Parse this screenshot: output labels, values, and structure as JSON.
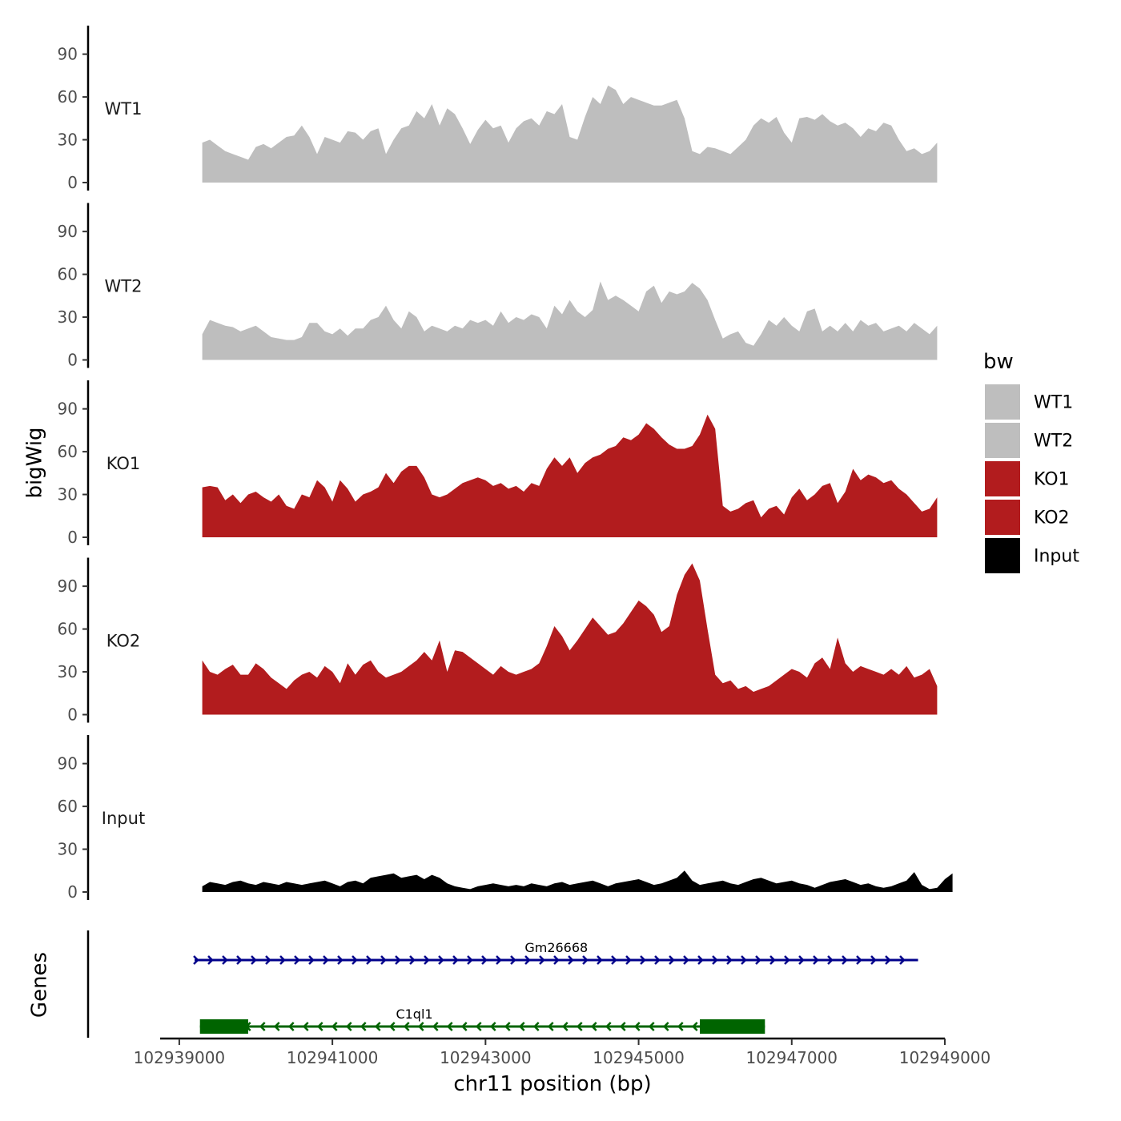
{
  "chart_data": {
    "type": "area",
    "x_axis": {
      "title": "chr11 position (bp)",
      "range": [
        102938750,
        102949000
      ],
      "ticks": [
        102939000,
        102941000,
        102943000,
        102945000,
        102947000,
        102949000
      ],
      "tick_labels": [
        "102939000",
        "102941000",
        "102943000",
        "102945000",
        "102947000",
        "102949000"
      ]
    },
    "y_axis": {
      "title": "bigWig",
      "range": [
        0,
        110
      ],
      "ticks": [
        0,
        30,
        60,
        90
      ],
      "tick_labels": [
        "0",
        "30",
        "60",
        "90"
      ]
    },
    "x_start": 102939300,
    "x_step": 100,
    "series": [
      {
        "name": "WT1",
        "color": "#bebebe",
        "values": [
          28,
          30,
          26,
          22,
          20,
          18,
          16,
          25,
          27,
          24,
          28,
          32,
          33,
          40,
          32,
          20,
          32,
          30,
          28,
          36,
          35,
          30,
          36,
          38,
          20,
          30,
          38,
          40,
          50,
          45,
          55,
          40,
          52,
          48,
          38,
          27,
          37,
          44,
          38,
          40,
          28,
          38,
          43,
          45,
          40,
          50,
          48,
          55,
          32,
          30,
          46,
          60,
          55,
          68,
          65,
          55,
          60,
          58,
          56,
          54,
          54,
          56,
          58,
          45,
          22,
          20,
          25,
          24,
          22,
          20,
          25,
          30,
          40,
          45,
          42,
          46,
          35,
          28,
          45,
          46,
          44,
          48,
          43,
          40,
          42,
          38,
          32,
          38,
          36,
          42,
          40,
          30,
          22,
          24,
          20,
          22,
          28
        ]
      },
      {
        "name": "WT2",
        "color": "#bebebe",
        "values": [
          18,
          28,
          26,
          24,
          23,
          20,
          22,
          24,
          20,
          16,
          15,
          14,
          14,
          16,
          26,
          26,
          20,
          18,
          22,
          17,
          22,
          22,
          28,
          30,
          38,
          28,
          22,
          34,
          30,
          20,
          24,
          22,
          20,
          24,
          22,
          28,
          26,
          28,
          24,
          34,
          26,
          30,
          28,
          32,
          30,
          22,
          38,
          32,
          42,
          34,
          30,
          35,
          55,
          42,
          45,
          42,
          38,
          34,
          48,
          52,
          40,
          48,
          46,
          48,
          54,
          50,
          42,
          28,
          15,
          18,
          20,
          12,
          10,
          18,
          28,
          24,
          30,
          24,
          20,
          34,
          36,
          20,
          24,
          20,
          26,
          20,
          28,
          24,
          26,
          20,
          22,
          24,
          20,
          26,
          22,
          18,
          24
        ]
      },
      {
        "name": "KO1",
        "color": "#b21c1e",
        "values": [
          35,
          36,
          35,
          26,
          30,
          24,
          30,
          32,
          28,
          25,
          30,
          22,
          20,
          30,
          28,
          40,
          35,
          25,
          40,
          34,
          25,
          30,
          32,
          35,
          45,
          38,
          46,
          50,
          50,
          42,
          30,
          28,
          30,
          34,
          38,
          40,
          42,
          40,
          36,
          38,
          34,
          36,
          32,
          38,
          36,
          48,
          56,
          50,
          56,
          45,
          52,
          56,
          58,
          62,
          64,
          70,
          68,
          72,
          80,
          76,
          70,
          65,
          62,
          62,
          64,
          72,
          86,
          76,
          22,
          18,
          20,
          24,
          26,
          14,
          20,
          22,
          16,
          28,
          34,
          26,
          30,
          36,
          38,
          24,
          32,
          48,
          40,
          44,
          42,
          38,
          40,
          34,
          30,
          24,
          18,
          20,
          28
        ]
      },
      {
        "name": "KO2",
        "color": "#b21c1e",
        "values": [
          38,
          30,
          28,
          32,
          35,
          28,
          28,
          36,
          32,
          26,
          22,
          18,
          24,
          28,
          30,
          26,
          34,
          30,
          22,
          36,
          28,
          35,
          38,
          30,
          26,
          28,
          30,
          34,
          38,
          44,
          38,
          52,
          30,
          45,
          44,
          40,
          36,
          32,
          28,
          34,
          30,
          28,
          30,
          32,
          36,
          48,
          62,
          55,
          45,
          52,
          60,
          68,
          62,
          56,
          58,
          64,
          72,
          80,
          76,
          70,
          58,
          62,
          84,
          98,
          106,
          94,
          60,
          28,
          22,
          24,
          18,
          20,
          16,
          18,
          20,
          24,
          28,
          32,
          30,
          26,
          36,
          40,
          32,
          54,
          36,
          30,
          34,
          32,
          30,
          28,
          32,
          28,
          34,
          26,
          28,
          32,
          20
        ]
      },
      {
        "name": "Input",
        "color": "#000000",
        "values": [
          4,
          7,
          6,
          5,
          7,
          8,
          6,
          5,
          7,
          6,
          5,
          7,
          6,
          5,
          6,
          7,
          8,
          6,
          4,
          7,
          8,
          6,
          10,
          11,
          12,
          13,
          10,
          11,
          12,
          9,
          12,
          10,
          6,
          4,
          3,
          2,
          4,
          5,
          6,
          5,
          4,
          5,
          4,
          6,
          5,
          4,
          6,
          7,
          5,
          6,
          7,
          8,
          6,
          4,
          6,
          7,
          8,
          9,
          7,
          5,
          6,
          8,
          10,
          15,
          8,
          5,
          6,
          7,
          8,
          6,
          5,
          7,
          9,
          10,
          8,
          6,
          7,
          8,
          6,
          5,
          3,
          5,
          7,
          8,
          9,
          7,
          5,
          6,
          4,
          3,
          4,
          6,
          8,
          14,
          5,
          2,
          3,
          9,
          13
        ]
      }
    ],
    "genes": [
      {
        "name": "Gm26668",
        "strand": "+",
        "start": 102939200,
        "end": 102948650,
        "color": "#00008b",
        "exons": []
      },
      {
        "name": "C1ql1",
        "strand": "-",
        "start": 102939270,
        "end": 102946650,
        "color": "#006400",
        "exons": [
          [
            102939270,
            102939900
          ],
          [
            102945800,
            102946650
          ]
        ]
      }
    ],
    "genes_track_title": "Genes",
    "legend": {
      "title": "bw",
      "position": "right",
      "entries": [
        {
          "label": "WT1",
          "color": "#bebebe"
        },
        {
          "label": "WT2",
          "color": "#bebebe"
        },
        {
          "label": "KO1",
          "color": "#b21c1e"
        },
        {
          "label": "KO2",
          "color": "#b21c1e"
        },
        {
          "label": "Input",
          "color": "#000000"
        }
      ]
    }
  }
}
